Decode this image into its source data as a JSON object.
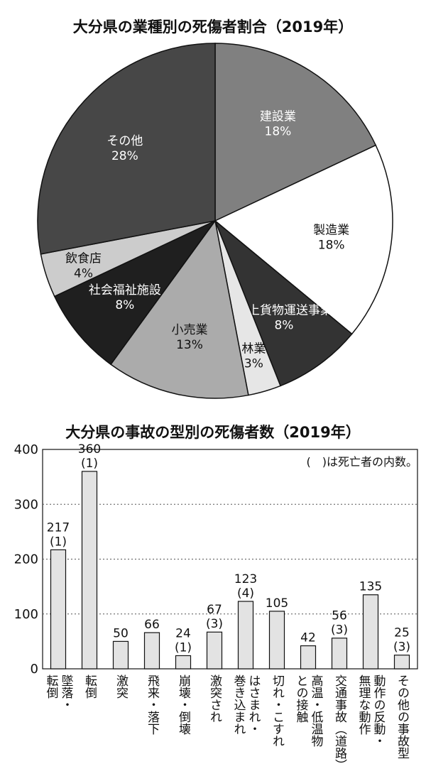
{
  "chart_data": [
    {
      "type": "pie",
      "title": "大分県の業種別の死傷者割合（2019年）",
      "slices": [
        {
          "label": "建設業",
          "value": 18,
          "value_label": "18%",
          "color": "#808080",
          "text_color": "#ffffff"
        },
        {
          "label": "製造業",
          "value": 18,
          "value_label": "18%",
          "color": "#ffffff",
          "text_color": "#111111"
        },
        {
          "label": "陸上貨物運送事業",
          "value": 8,
          "value_label": "8%",
          "color": "#333333",
          "text_color": "#ffffff"
        },
        {
          "label": "林業",
          "value": 3,
          "value_label": "3%",
          "color": "#e6e6e6",
          "text_color": "#111111"
        },
        {
          "label": "小売業",
          "value": 13,
          "value_label": "13%",
          "color": "#ababab",
          "text_color": "#111111"
        },
        {
          "label": "社会福祉施設",
          "value": 8,
          "value_label": "8%",
          "color": "#1f1f1f",
          "text_color": "#ffffff"
        },
        {
          "label": "飲食店",
          "value": 4,
          "value_label": "4%",
          "color": "#cccccc",
          "text_color": "#111111"
        },
        {
          "label": "その他",
          "value": 28,
          "value_label": "28%",
          "color": "#474747",
          "text_color": "#ffffff"
        }
      ]
    },
    {
      "type": "bar",
      "title": "大分県の事故の型別の死傷者数（2019年）",
      "note": "(　)は死亡者の内数。",
      "ylim": [
        0,
        400
      ],
      "yticks": [
        0,
        100,
        200,
        300,
        400
      ],
      "grid": true,
      "bar_color": "#e3e3e3",
      "categories": [
        "墜落・転倒",
        "転倒",
        "激突",
        "飛来・落下",
        "崩壊・倒壊",
        "激突され",
        "はさまれ・巻き込まれ",
        "切れ・こすれ",
        "高温・低温物との接触",
        "交通事故（道路）",
        "動作の反動・無理な動作",
        "その他の事故型"
      ],
      "category_lines": [
        [
          "墜落・",
          "転倒"
        ],
        [
          "転倒"
        ],
        [
          "激突"
        ],
        [
          "飛来・落下"
        ],
        [
          "崩壊・倒壊"
        ],
        [
          "激突され"
        ],
        [
          "はさまれ・",
          "巻き込まれ"
        ],
        [
          "切れ・こすれ"
        ],
        [
          "高温・低温物",
          "との接触"
        ],
        [
          "交通事故（道路）"
        ],
        [
          "動作の反動・",
          "無理な動作"
        ],
        [
          "その他の事故型"
        ]
      ],
      "values": [
        217,
        360,
        50,
        66,
        24,
        67,
        123,
        105,
        42,
        56,
        135,
        25
      ],
      "value_labels": [
        "217",
        "360",
        "50",
        "66",
        "24",
        "67",
        "123",
        "105",
        "42",
        "56",
        "135",
        "25"
      ],
      "deaths_labels": [
        "(1)",
        "(1)",
        "",
        "",
        "(1)",
        "(3)",
        "(4)",
        "",
        "",
        "(3)",
        "",
        "(3)"
      ]
    }
  ]
}
